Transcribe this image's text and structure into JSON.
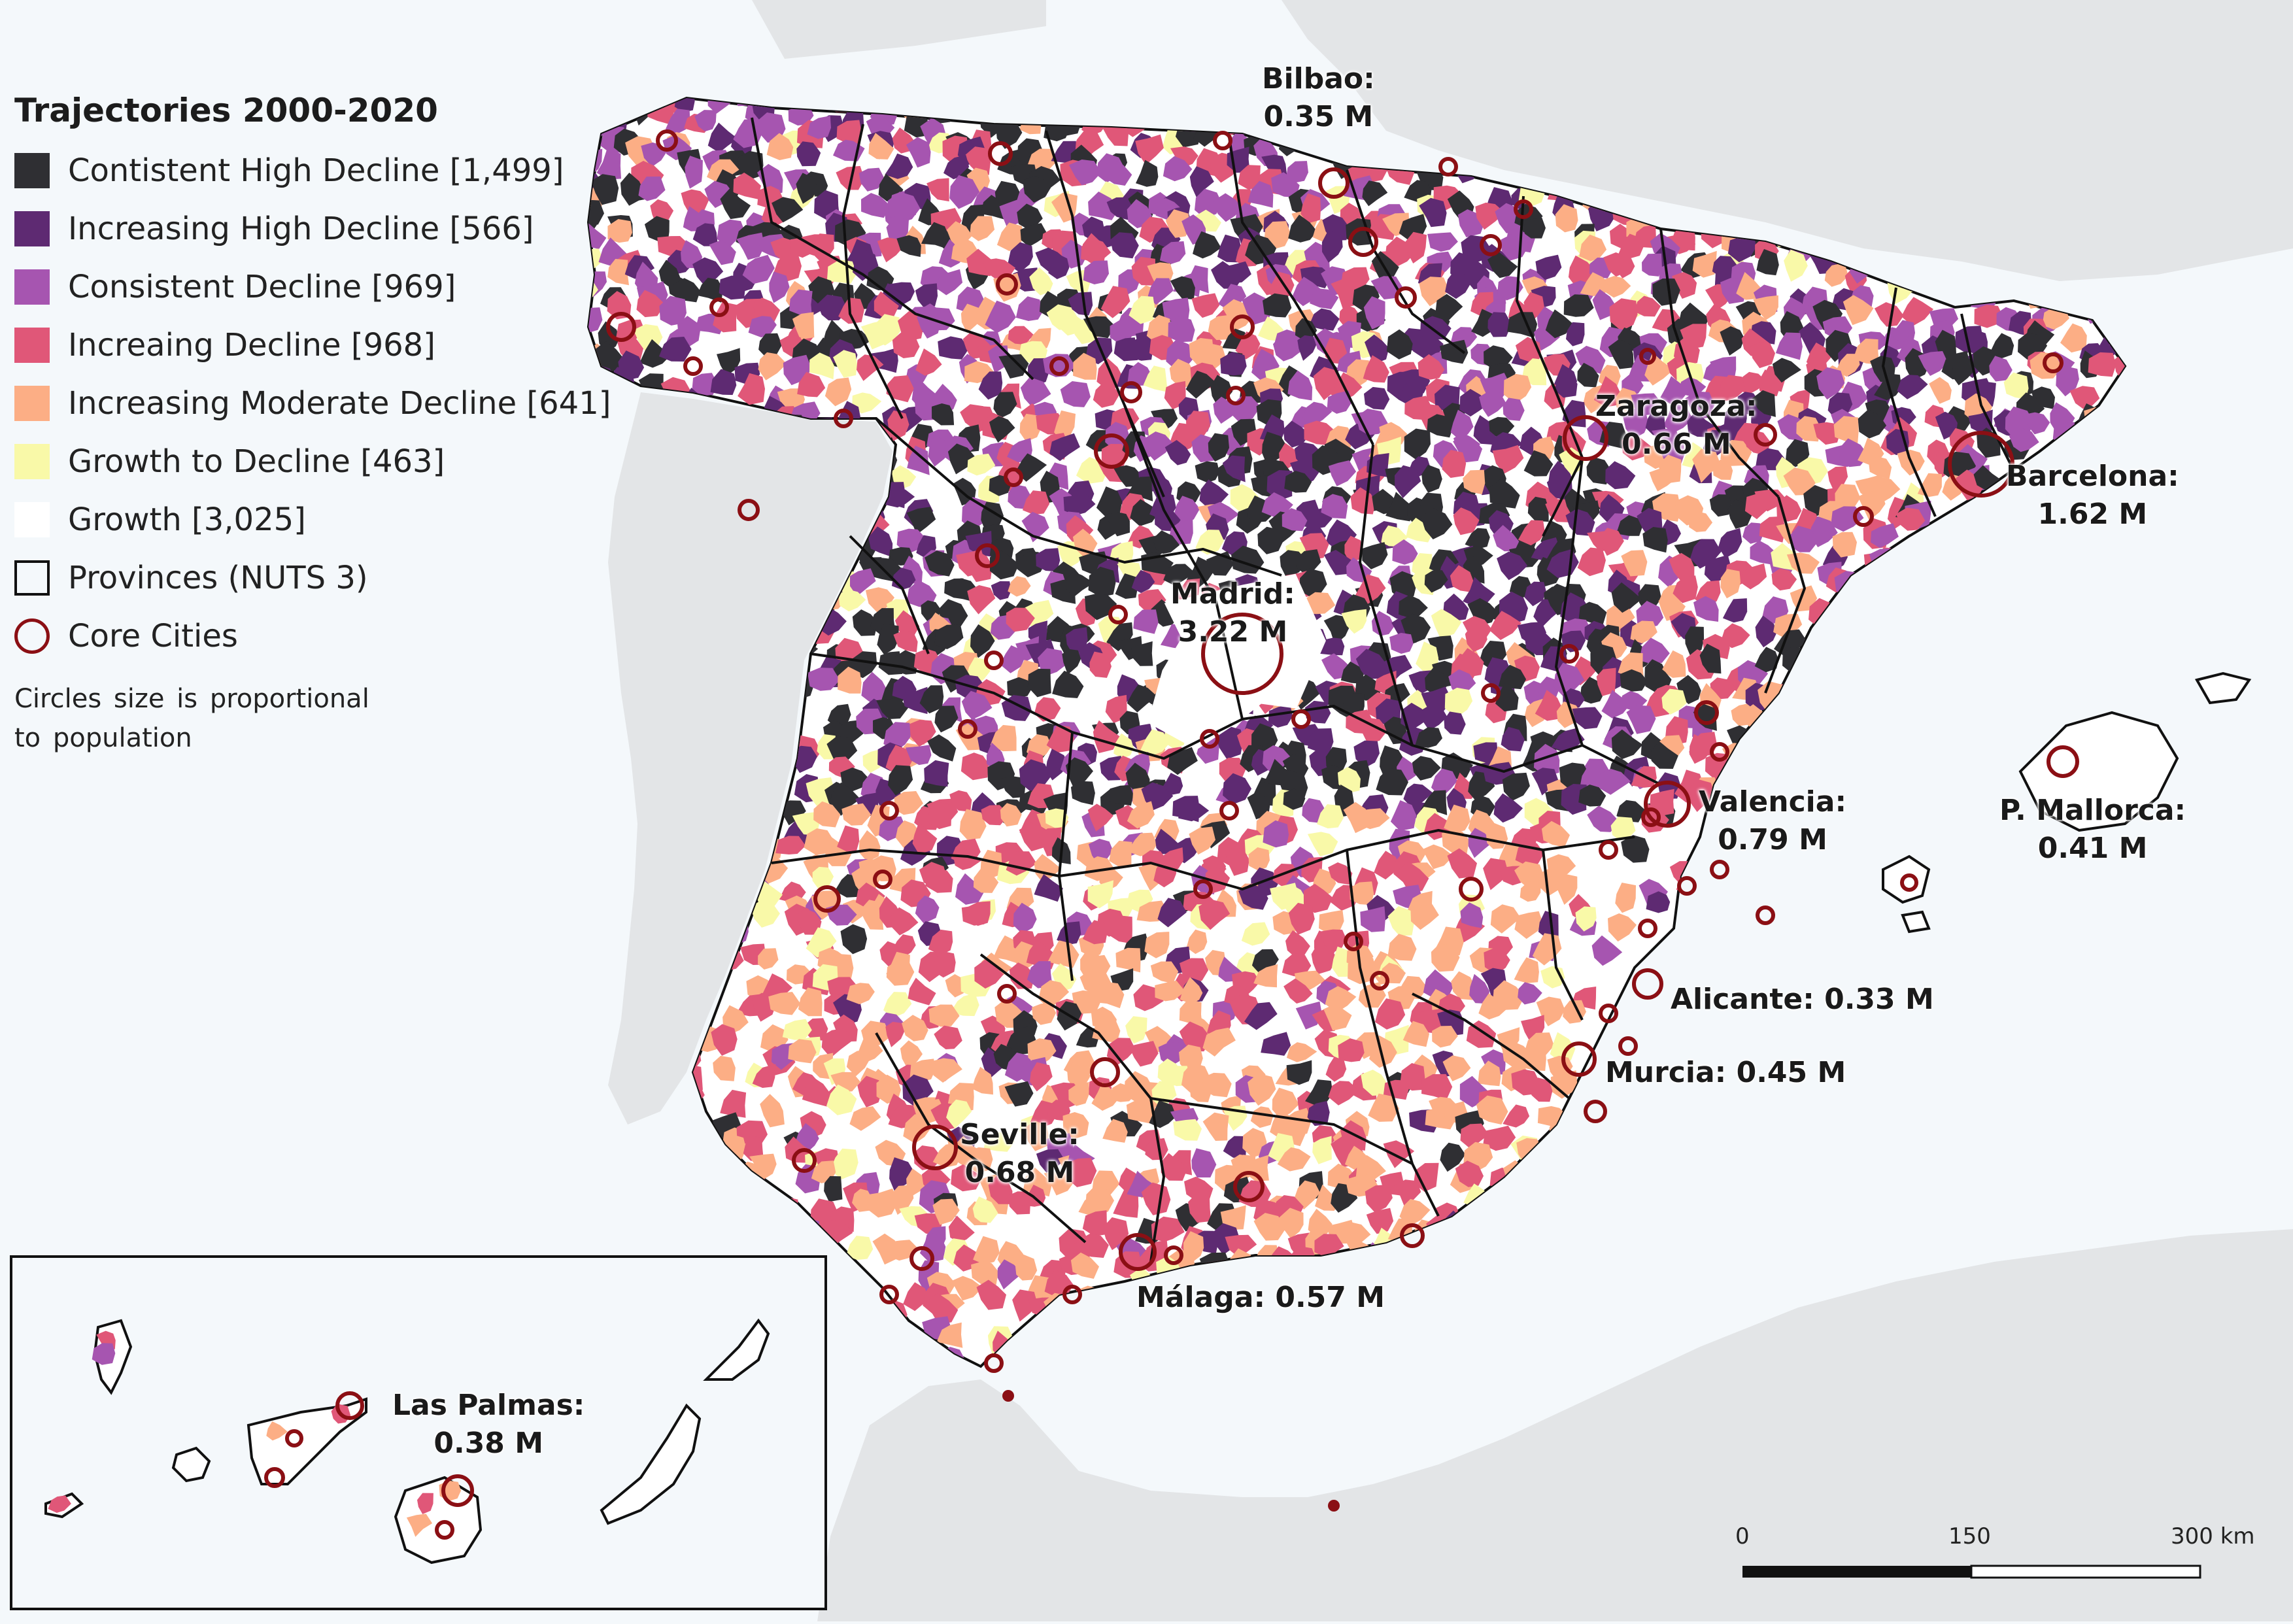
{
  "legend": {
    "title": "Trajectories 2000-2020",
    "items": [
      {
        "label": "Contistent High Decline [1,499]",
        "color": "#2f2f33"
      },
      {
        "label": "Increasing High Decline [566]",
        "color": "#5e2a72"
      },
      {
        "label": "Consistent Decline [969]",
        "color": "#a655b0"
      },
      {
        "label": "Increaing Decline [968]",
        "color": "#e05778"
      },
      {
        "label": "Increasing Moderate Decline [641]",
        "color": "#fcae85"
      },
      {
        "label": "Growth to Decline [463]",
        "color": "#f9f9a8"
      },
      {
        "label": "Growth [3,025]",
        "color": "#ffffff"
      }
    ],
    "provinces_label": "Provinces (NUTS 3)",
    "core_cities_label": "Core Cities",
    "note_line1": "Circles size is proportional",
    "note_line2": "to population"
  },
  "cities": {
    "bilbao": {
      "name": "Bilbao:",
      "pop": "0.35 M"
    },
    "zaragoza": {
      "name": "Zaragoza:",
      "pop": "0.66 M"
    },
    "barcelona": {
      "name": "Barcelona:",
      "pop": "1.62 M"
    },
    "madrid": {
      "name": "Madrid:",
      "pop": "3.22 M"
    },
    "valencia": {
      "name": "Valencia:",
      "pop": "0.79 M"
    },
    "mallorca": {
      "name": "P. Mallorca:",
      "pop": "0.41 M"
    },
    "alicante": {
      "label": "Alicante: 0.33 M"
    },
    "murcia": {
      "label": "Murcia: 0.45 M"
    },
    "seville": {
      "name": "Seville:",
      "pop": "0.68 M"
    },
    "malaga": {
      "label": "Málaga: 0.57 M"
    },
    "laspalmas": {
      "name": "Las Palmas:",
      "pop": "0.38 M"
    }
  },
  "scale": {
    "ticks": [
      "0",
      "150",
      "300 km"
    ]
  },
  "colors": {
    "sea": "#f4f8fb",
    "neighbor_land": "#e3e5e7",
    "growth_land": "#ffffff",
    "city_circle": "#8b0f14",
    "province_border": "#111111"
  }
}
